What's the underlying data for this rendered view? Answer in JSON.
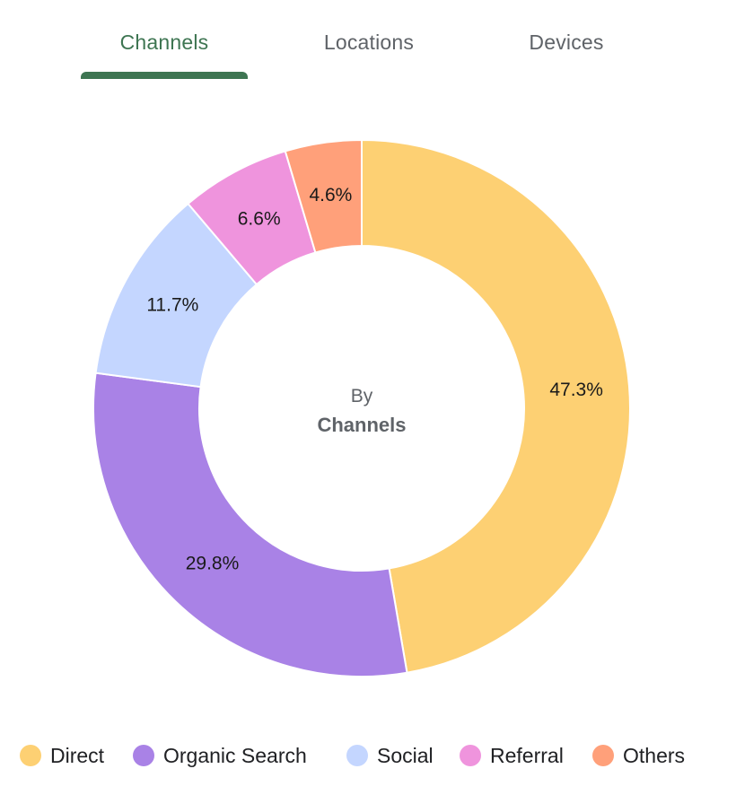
{
  "tabs": [
    {
      "label": "Channels",
      "active": true
    },
    {
      "label": "Locations",
      "active": false
    },
    {
      "label": "Devices",
      "active": false
    }
  ],
  "colors": {
    "accent": "#3e7552"
  },
  "chart_data": {
    "type": "pie",
    "variant": "donut",
    "center_text": {
      "top": "By",
      "bottom": "Channels"
    },
    "categories": [
      "Direct",
      "Organic Search",
      "Social",
      "Referral",
      "Others"
    ],
    "values": [
      47.3,
      29.8,
      11.7,
      6.6,
      4.6
    ],
    "value_labels": [
      "47.3%",
      "29.8%",
      "11.7%",
      "6.6%",
      "4.6%"
    ],
    "colors": [
      "#fdd073",
      "#a982e6",
      "#c4d6ff",
      "#ef94dd",
      "#ffa07a"
    ],
    "legend_position": "bottom"
  }
}
